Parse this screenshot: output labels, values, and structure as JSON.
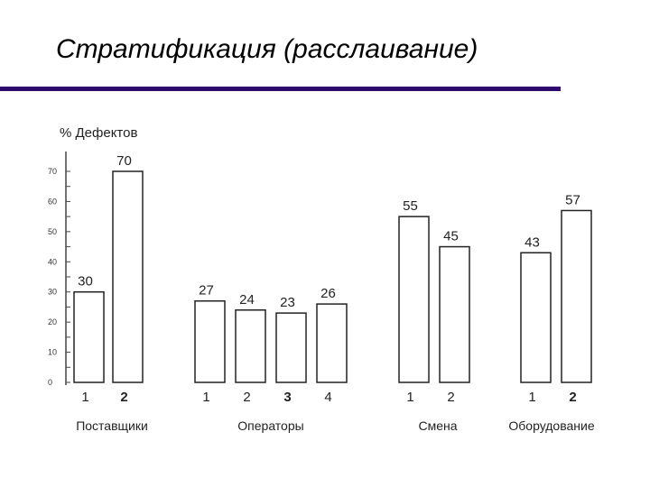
{
  "slide": {
    "title": "Стратификация (расслаивание)",
    "rule_color": "#2e0a6e"
  },
  "chart_data": {
    "type": "bar",
    "ylabel": "% Дефектов",
    "ylim": [
      0,
      70
    ],
    "yticks": [
      "0",
      "10",
      "20",
      "30",
      "40",
      "50",
      "60",
      "70"
    ],
    "grid": false,
    "groups": [
      {
        "name": "Поставщики",
        "categories": [
          "1",
          "2"
        ],
        "values": [
          30,
          70
        ],
        "value_labels": [
          "30",
          "70"
        ],
        "bold": [
          false,
          true
        ]
      },
      {
        "name": "Операторы",
        "categories": [
          "1",
          "2",
          "3",
          "4"
        ],
        "values": [
          27,
          24,
          23,
          26
        ],
        "value_labels": [
          "27",
          "24",
          "23",
          "26"
        ],
        "bold": [
          false,
          false,
          true,
          false
        ]
      },
      {
        "name": "Смена",
        "categories": [
          "1",
          "2"
        ],
        "values": [
          55,
          45
        ],
        "value_labels": [
          "55",
          "45"
        ],
        "bold": [
          false,
          false
        ]
      },
      {
        "name": "Оборудование",
        "categories": [
          "1",
          "2"
        ],
        "values": [
          43,
          57
        ],
        "value_labels": [
          "43",
          "57"
        ],
        "bold": [
          false,
          true
        ]
      }
    ]
  }
}
